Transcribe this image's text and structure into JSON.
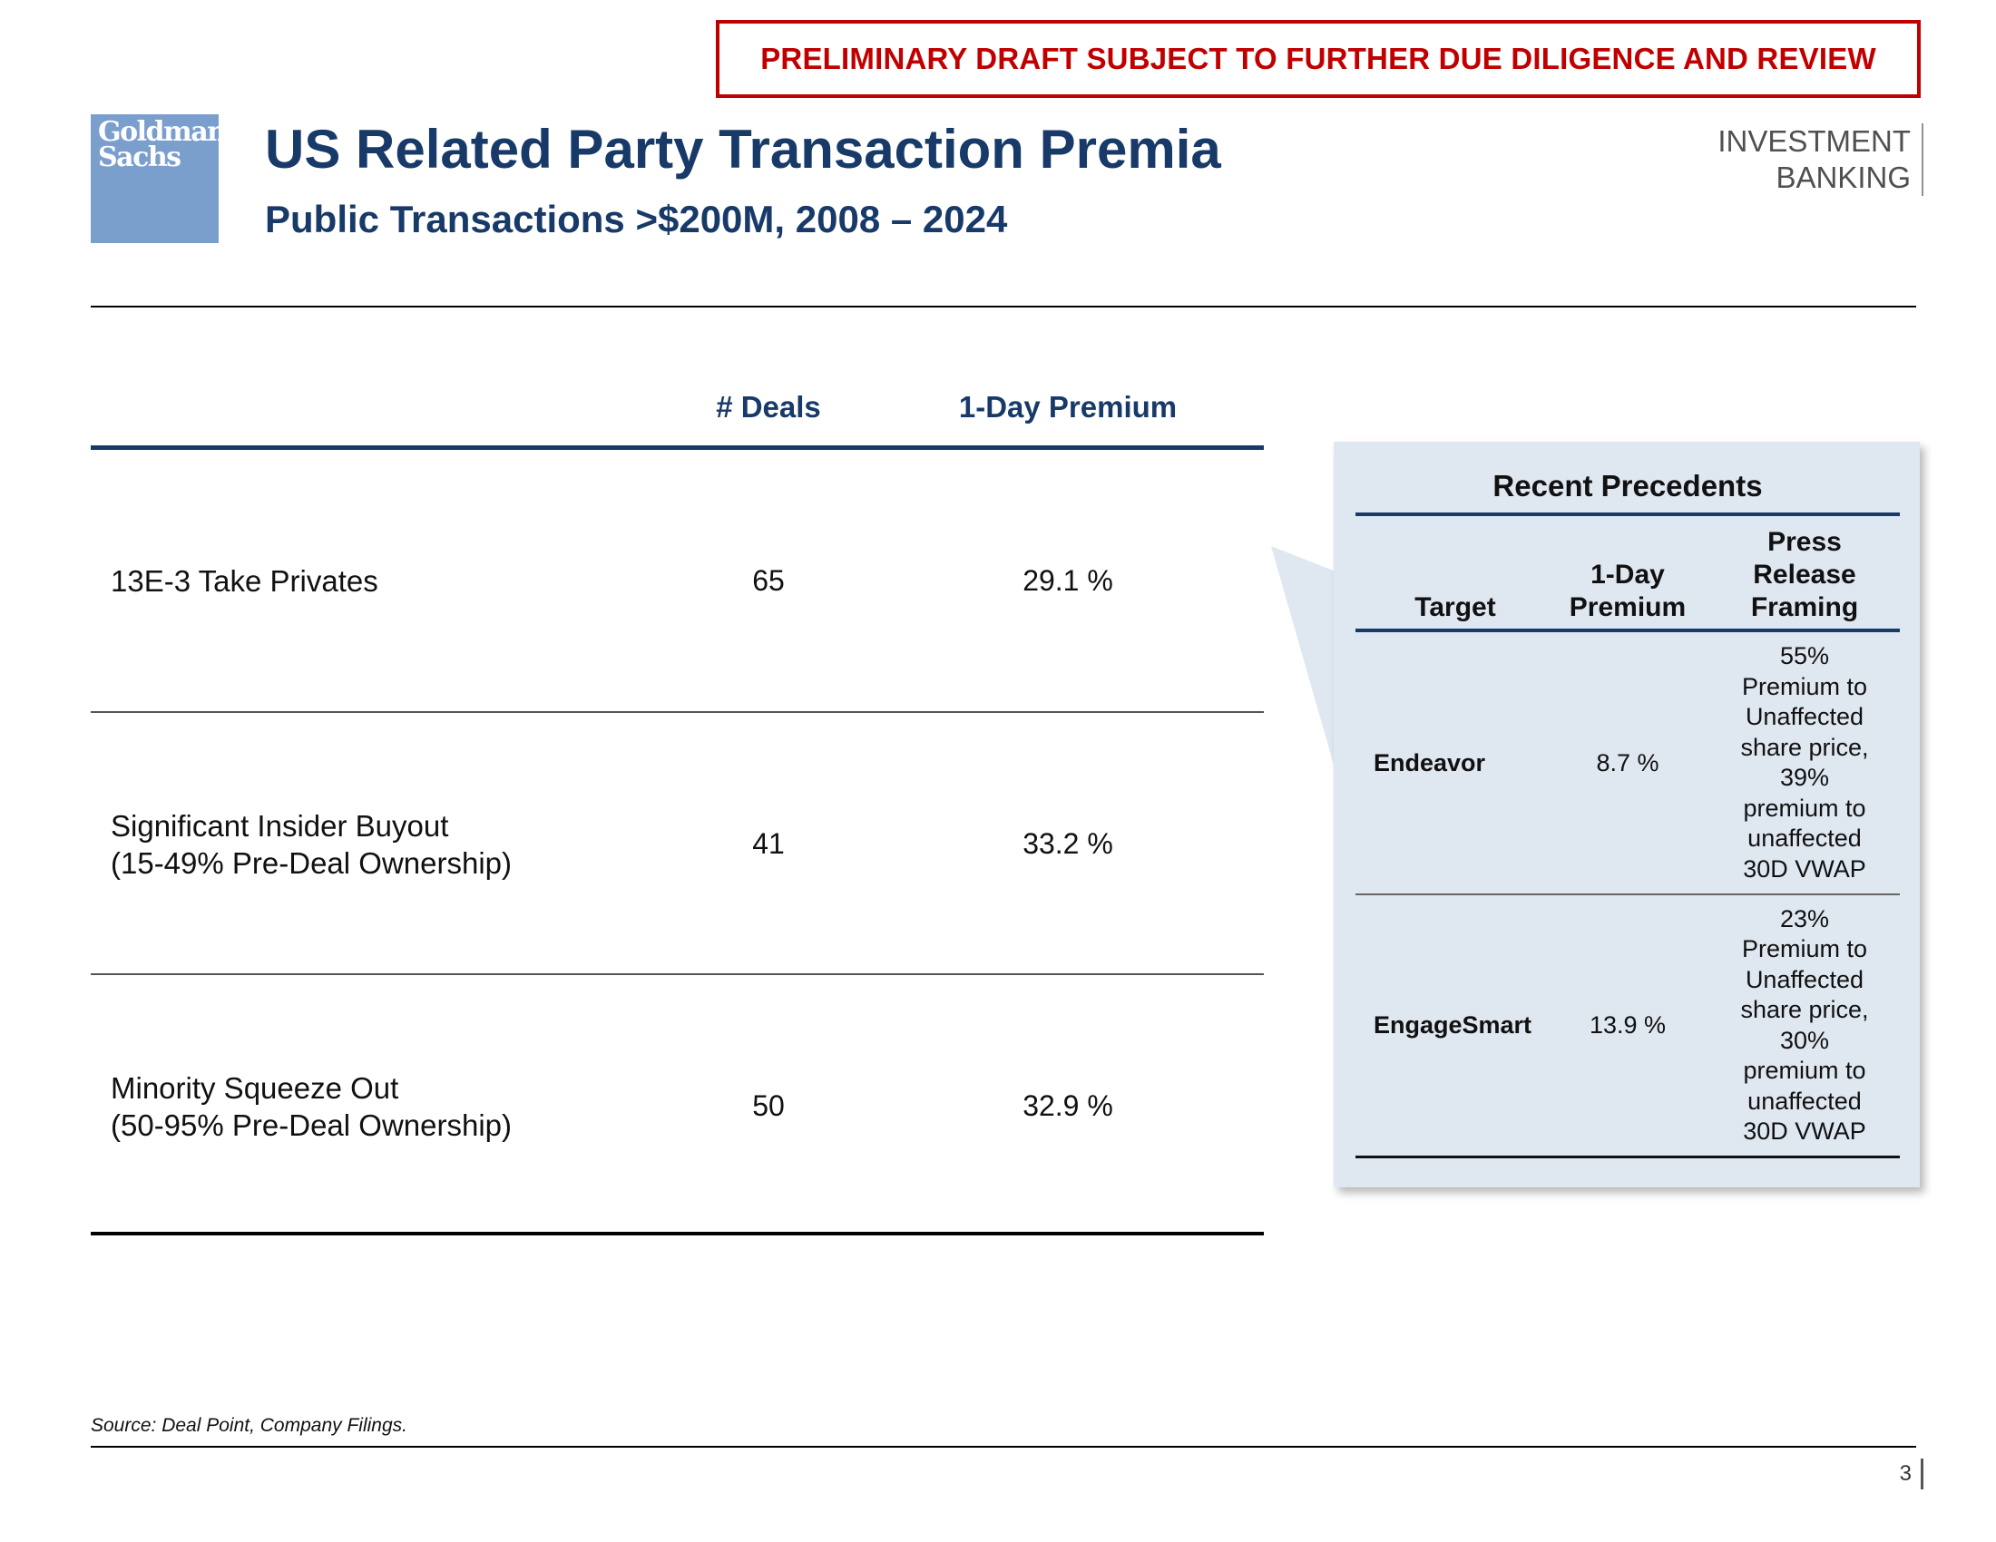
{
  "banner": {
    "text": "PRELIMINARY DRAFT SUBJECT TO FURTHER DUE DILIGENCE AND REVIEW"
  },
  "logo": {
    "line1": "Goldman",
    "line2": "Sachs"
  },
  "header": {
    "title": "US Related Party Transaction Premia",
    "subtitle": "Public Transactions >$200M, 2008 – 2024",
    "division_line1": "INVESTMENT",
    "division_line2": "BANKING"
  },
  "main_table": {
    "headers": {
      "deals": "# Deals",
      "premium": "1-Day Premium"
    },
    "rows": [
      {
        "label_line1": "13E-3 Take Privates",
        "label_line2": "",
        "deals": "65",
        "premium": "29.1 %"
      },
      {
        "label_line1": "Significant Insider Buyout",
        "label_line2": "(15-49% Pre-Deal Ownership)",
        "deals": "41",
        "premium": "33.2 %"
      },
      {
        "label_line1": "Minority Squeeze Out",
        "label_line2": "(50-95% Pre-Deal Ownership)",
        "deals": "50",
        "premium": "32.9 %"
      }
    ]
  },
  "precedents": {
    "title": "Recent Precedents",
    "headers": {
      "target": "Target",
      "premium_line1": "1-Day",
      "premium_line2": "Premium",
      "framing_line1": "Press",
      "framing_line2": "Release",
      "framing_line3": "Framing"
    },
    "rows": [
      {
        "target": "Endeavor",
        "premium": "8.7 %",
        "framing": [
          "55%",
          "Premium to",
          "Unaffected",
          "share price,",
          "39%",
          "premium to",
          "unaffected",
          "30D VWAP"
        ]
      },
      {
        "target": "EngageSmart",
        "premium": "13.9 %",
        "framing": [
          "23%",
          "Premium to",
          "Unaffected",
          "share price,",
          "30%",
          "premium to",
          "unaffected",
          "30D VWAP"
        ]
      }
    ]
  },
  "footer": {
    "source": "Source: Deal Point, Company Filings.",
    "page": "3"
  },
  "colors": {
    "navy": "#183a68",
    "red": "#c00000",
    "logo_blue": "#7b9fcd",
    "panel_bg": "#dfe7f1"
  }
}
